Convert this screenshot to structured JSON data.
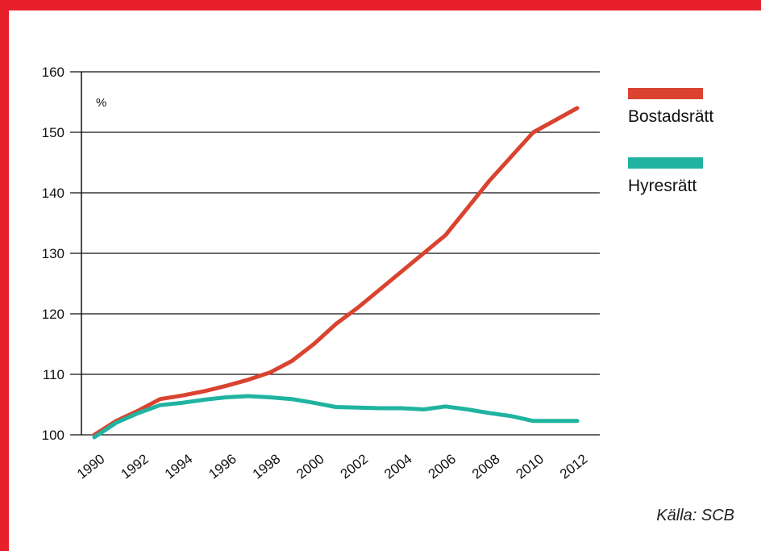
{
  "chart_data": {
    "type": "line",
    "unit_label": "%",
    "x": [
      1990,
      1991,
      1992,
      1993,
      1994,
      1995,
      1996,
      1997,
      1998,
      1999,
      2000,
      2001,
      2002,
      2003,
      2004,
      2005,
      2006,
      2007,
      2008,
      2009,
      2010,
      2011,
      2012
    ],
    "x_ticks": [
      "1990",
      "1992",
      "1994",
      "1996",
      "1998",
      "2000",
      "2002",
      "2004",
      "2006",
      "2008",
      "2010",
      "2012"
    ],
    "y_ticks": [
      "100",
      "110",
      "120",
      "130",
      "140",
      "150",
      "160"
    ],
    "ylim": [
      100,
      160
    ],
    "grid": true,
    "legend_position": "right",
    "series": [
      {
        "name": "Bostadsrätt",
        "color": "#d9432f",
        "values": [
          100,
          102.3,
          104,
          105.9,
          106.5,
          107.2,
          108.1,
          109.1,
          110.3,
          112.2,
          115,
          118.3,
          121,
          124,
          127,
          130,
          133,
          137.5,
          142,
          146,
          150,
          152,
          154
        ]
      },
      {
        "name": "Hyresrätt",
        "color": "#1fb3a0",
        "values": [
          99.6,
          102,
          103.6,
          104.9,
          105.3,
          105.8,
          106.2,
          106.4,
          106.2,
          105.9,
          105.3,
          104.6,
          104.5,
          104.4,
          104.4,
          104.2,
          104.7,
          104.2,
          103.6,
          103.1,
          102.3,
          102.3,
          102.3
        ]
      }
    ]
  },
  "source_label": "Källa: SCB"
}
